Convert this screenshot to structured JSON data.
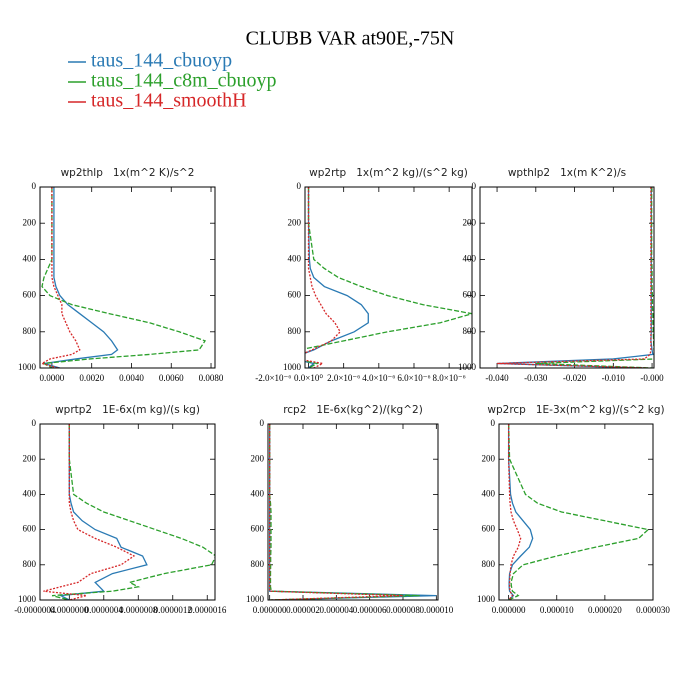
{
  "title": "CLUBB VAR at90E,-75N",
  "chart_data": [
    {
      "type": "line",
      "title": "wp2thlp   1x(m^2 K)/s^2",
      "y_inverted": true,
      "y": [
        0,
        200,
        400,
        450,
        500,
        550,
        600,
        650,
        700,
        750,
        800,
        850,
        900,
        925,
        950,
        975,
        1000
      ],
      "ylim": [
        0,
        1000
      ],
      "yticks": [
        0,
        200,
        400,
        600,
        800,
        1000
      ],
      "xlim": [
        -0.0006,
        0.0082
      ],
      "xticks": [
        {
          "value": 0,
          "label": "0.0000"
        },
        {
          "value": 0.002,
          "label": "0.0020"
        },
        {
          "value": 0.004,
          "label": "0.0040"
        },
        {
          "value": 0.006,
          "label": "0.0060"
        },
        {
          "value": 0.008,
          "label": "0.0080"
        }
      ],
      "series": [
        {
          "name": "taus_144_cbuoyp",
          "color": "#2a7ab4",
          "values": [
            0.0001,
            0.0001,
            0.0001,
            0.0001,
            0.0001,
            0.0002,
            0.0004,
            0.0008,
            0.0014,
            0.002,
            0.0026,
            0.003,
            0.0033,
            0.003,
            0.0012,
            -0.0004,
            0.0004
          ]
        },
        {
          "name": "taus_144_c8m_cbuoyp",
          "color": "#2ca02c",
          "values": [
            0,
            0,
            0,
            -0.0002,
            -0.0004,
            -0.0005,
            -0.0001,
            0.001,
            0.0029,
            0.0049,
            0.0064,
            0.0077,
            0.0074,
            0.0049,
            0.0019,
            -0.0004,
            0
          ]
        },
        {
          "name": "taus_144_smoothH",
          "color": "#d62728",
          "values": [
            0,
            0,
            0,
            0,
            0,
            0.0001,
            0.0003,
            0.0005,
            0.0005,
            0.0007,
            0.0009,
            0.0012,
            0.0014,
            0.001,
            -0.0001,
            -0.0005,
            0.0003
          ]
        }
      ]
    },
    {
      "type": "line",
      "title": "wp2rtp   1x(m^2 kg)/(s^2 kg)",
      "y_inverted": true,
      "y": [
        0,
        200,
        400,
        450,
        500,
        550,
        600,
        650,
        700,
        750,
        800,
        850,
        900,
        925,
        950,
        975,
        1000
      ],
      "ylim": [
        0,
        1000
      ],
      "yticks": [
        0,
        200,
        400,
        600,
        800,
        1000
      ],
      "xlim": [
        -2e-07,
        9.3e-06
      ],
      "xticks": [
        {
          "value": -2e-06,
          "label": "-2.0×10⁻⁶"
        },
        {
          "value": 0,
          "label": "0.0×10⁰"
        },
        {
          "value": 2e-06,
          "label": "2.0×10⁻⁶"
        },
        {
          "value": 4e-06,
          "label": "4.0×10⁻⁶"
        },
        {
          "value": 6e-06,
          "label": "6.0×10⁻⁶"
        },
        {
          "value": 8e-06,
          "label": "8.0×10⁻⁶"
        }
      ],
      "series": [
        {
          "color": "#2a7ab4",
          "values": [
            0,
            0,
            5e-08,
            1e-07,
            3e-07,
            9e-07,
            2.2e-06,
            3e-06,
            3.4e-06,
            3.4e-06,
            2.6e-06,
            1.3e-06,
            3e-07,
            -4e-07,
            -9e-07,
            3e-07,
            0
          ]
        },
        {
          "color": "#2ca02c",
          "values": [
            0,
            0,
            3e-07,
            9e-07,
            1.7e-06,
            3e-06,
            4.5e-06,
            6.5e-06,
            9.3e-06,
            7.5e-06,
            4.5e-06,
            2e-06,
            -5e-07,
            -1.5e-06,
            -8e-07,
            5e-07,
            0
          ]
        },
        {
          "color": "#d62728",
          "values": [
            0,
            0,
            0,
            0,
            1e-07,
            2e-07,
            4e-07,
            7e-07,
            1e-06,
            1.5e-06,
            1.8e-06,
            1.3e-06,
            2e-07,
            -4e-07,
            -6e-07,
            8e-07,
            3e-07
          ]
        }
      ]
    },
    {
      "type": "line",
      "title": "wpthlp2   1x(m K^2)/s",
      "y_inverted": true,
      "y": [
        0,
        200,
        400,
        450,
        500,
        550,
        600,
        650,
        700,
        750,
        800,
        850,
        900,
        925,
        950,
        975,
        1000
      ],
      "ylim": [
        0,
        1000
      ],
      "yticks": [
        0,
        200,
        400,
        600,
        800,
        1000
      ],
      "xlim": [
        -0.0444,
        0.0005
      ],
      "xticks": [
        {
          "value": -0.04,
          "label": "-0.040"
        },
        {
          "value": -0.03,
          "label": "-0.030"
        },
        {
          "value": -0.02,
          "label": "-0.020"
        },
        {
          "value": -0.01,
          "label": "-0.010"
        },
        {
          "value": 0,
          "label": "-0.000"
        }
      ],
      "series": [
        {
          "color": "#2a7ab4",
          "values": [
            -0.0002,
            -0.0002,
            -0.0002,
            -0.0002,
            -0.0002,
            -0.0002,
            -0.0002,
            -0.0002,
            -0.0002,
            -0.0002,
            -0.0002,
            -0.0003,
            0,
            0.0002,
            -0.01,
            -0.04,
            -0.002
          ]
        },
        {
          "color": "#2ca02c",
          "values": [
            -0.0001,
            -0.0001,
            -0.0001,
            0,
            0,
            0,
            0.0001,
            0.0001,
            0.0002,
            0.0002,
            0.0003,
            0.0004,
            0.0005,
            0.0006,
            0.0008,
            -0.03,
            0
          ]
        },
        {
          "color": "#d62728",
          "values": [
            -0.0003,
            -0.0003,
            -0.0003,
            -0.0003,
            -0.0003,
            -0.0003,
            -0.0003,
            -0.0003,
            -0.0003,
            -0.0003,
            -0.0003,
            -0.0003,
            -0.0003,
            -0.0005,
            -0.002,
            -0.04,
            -0.001
          ]
        }
      ]
    },
    {
      "type": "line",
      "title": "wprtp2   1E-6x(m kg)/(s kg)",
      "y_inverted": true,
      "y": [
        0,
        200,
        400,
        450,
        500,
        550,
        600,
        650,
        700,
        750,
        800,
        850,
        900,
        925,
        950,
        975,
        1000
      ],
      "ylim": [
        0,
        1000
      ],
      "yticks": [
        0,
        200,
        400,
        600,
        800,
        1000
      ],
      "xlim": [
        -3.4e-07,
        1.69e-06
      ],
      "xticks": [
        {
          "value": -4e-07,
          "label": "-0.0000004"
        },
        {
          "value": 0,
          "label": "0.0000000"
        },
        {
          "value": 4e-07,
          "label": "0.0000004"
        },
        {
          "value": 8e-07,
          "label": "0.0000008"
        },
        {
          "value": 1.2e-06,
          "label": "0.0000012"
        },
        {
          "value": 1.6e-06,
          "label": "0.0000016"
        }
      ],
      "series": [
        {
          "color": "#2a7ab4",
          "values": [
            0,
            0,
            0,
            2e-08,
            5e-08,
            1.5e-07,
            3e-07,
            5.5e-07,
            6e-07,
            8.5e-07,
            9e-07,
            5e-07,
            3e-07,
            3.5e-07,
            4e-07,
            -1e-07,
            0
          ]
        },
        {
          "color": "#2ca02c",
          "values": [
            0,
            0,
            5e-08,
            2e-07,
            4e-07,
            7e-07,
            1e-06,
            1.3e-06,
            1.55e-06,
            1.7e-06,
            1.65e-06,
            1.1e-06,
            7e-07,
            8e-07,
            5e-07,
            -2e-07,
            0
          ]
        },
        {
          "color": "#d62728",
          "values": [
            0,
            0,
            0,
            0,
            2e-08,
            5e-08,
            1e-07,
            3e-07,
            5.5e-07,
            7.5e-07,
            6e-07,
            2.5e-07,
            1e-07,
            -1e-07,
            -3e-07,
            2e-07,
            0
          ]
        }
      ]
    },
    {
      "type": "line",
      "title": "rcp2   1E-6x(kg^2)/(kg^2)",
      "y_inverted": true,
      "y": [
        0,
        200,
        400,
        450,
        500,
        550,
        600,
        650,
        700,
        750,
        800,
        850,
        900,
        925,
        950,
        975,
        1000
      ],
      "ylim": [
        0,
        1000
      ],
      "yticks": [
        0,
        200,
        400,
        600,
        800,
        1000
      ],
      "xlim": [
        -1e-07,
        1.01e-05
      ],
      "xticks": [
        {
          "value": 0,
          "label": "0.000000"
        },
        {
          "value": 2e-06,
          "label": "0.000002"
        },
        {
          "value": 4e-06,
          "label": "0.000004"
        },
        {
          "value": 6e-06,
          "label": "0.000006"
        },
        {
          "value": 8e-06,
          "label": "0.000008"
        },
        {
          "value": 1e-05,
          "label": "0.000010"
        }
      ],
      "series": [
        {
          "color": "#2a7ab4",
          "values": [
            0,
            0,
            0,
            0,
            0,
            0,
            0,
            0,
            0,
            0,
            0,
            0,
            0,
            0,
            0,
            1e-05,
            0
          ]
        },
        {
          "color": "#2ca02c",
          "values": [
            0,
            0,
            0,
            5e-08,
            8e-08,
            8e-08,
            8e-08,
            8e-08,
            8e-08,
            6e-08,
            6e-08,
            5e-08,
            5e-08,
            5e-08,
            1e-07,
            9e-06,
            0
          ]
        },
        {
          "color": "#d62728",
          "values": [
            0,
            0,
            0,
            0,
            0,
            0,
            0,
            0,
            0,
            0,
            0,
            0,
            0,
            0,
            0,
            8e-06,
            0
          ]
        }
      ]
    },
    {
      "type": "line",
      "title": "wp2rcp   1E-3x(m^2 kg)/(s^2 kg)",
      "y_inverted": true,
      "y": [
        0,
        200,
        400,
        450,
        500,
        550,
        600,
        650,
        700,
        750,
        800,
        850,
        900,
        925,
        950,
        975,
        1000
      ],
      "ylim": [
        0,
        1000
      ],
      "yticks": [
        0,
        200,
        400,
        600,
        800,
        1000
      ],
      "xlim": [
        -2e-06,
        3e-05
      ],
      "xticks": [
        {
          "value": 0,
          "label": "0.000000"
        },
        {
          "value": 1e-05,
          "label": "0.000010"
        },
        {
          "value": 2e-05,
          "label": "0.000020"
        },
        {
          "value": 3e-05,
          "label": "0.000030"
        }
      ],
      "series": [
        {
          "color": "#2a7ab4",
          "values": [
            0,
            0,
            4e-07,
            8e-07,
            1.5e-06,
            3e-06,
            4.5e-06,
            5e-06,
            4.3e-06,
            2.5e-06,
            8e-07,
            2e-07,
            1e-07,
            1e-07,
            2e-07,
            1e-06,
            0
          ]
        },
        {
          "color": "#2ca02c",
          "values": [
            0,
            2e-07,
            3.5e-06,
            6e-06,
            1.1e-05,
            2e-05,
            2.9e-05,
            2.7e-05,
            1.8e-05,
            1e-05,
            3e-06,
            1e-06,
            5e-07,
            6e-07,
            8e-07,
            2e-06,
            0
          ]
        },
        {
          "color": "#d62728",
          "values": [
            0,
            0,
            2e-07,
            3e-07,
            5e-07,
            1e-06,
            1.8e-06,
            2.5e-06,
            2e-06,
            1e-06,
            5e-07,
            3e-07,
            2e-07,
            2e-07,
            3e-07,
            8e-07,
            0
          ]
        }
      ]
    }
  ]
}
